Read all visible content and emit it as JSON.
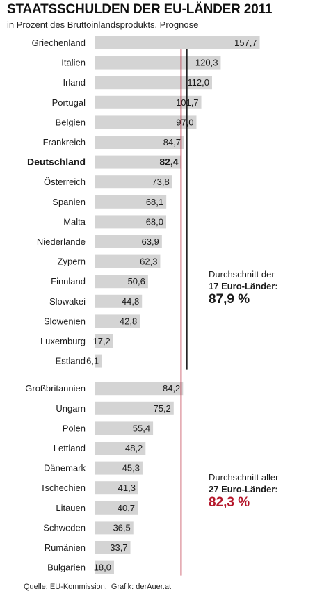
{
  "title": "STAATSSCHULDEN DER EU-LÄNDER 2011",
  "subtitle": "in Prozent des Bruttoinlandsprodukts, Prognose",
  "footer": {
    "source": "Quelle: EU-Kommission.",
    "credit": "Grafik: derAuer.at"
  },
  "averages": {
    "euro17": {
      "line1": "Durchschnitt der",
      "line2": "17 Euro-Länder:",
      "value": "87,9 %",
      "numeric": 87.9,
      "color": "#1a1a1a"
    },
    "eu27": {
      "line1": "Durchschnitt aller",
      "line2": "27 Euro-Länder:",
      "value": "82,3 %",
      "numeric": 82.3,
      "color": "#b5162a"
    }
  },
  "chart_data": {
    "type": "bar",
    "orientation": "horizontal",
    "title": "STAATSSCHULDEN DER EU-LÄNDER 2011",
    "subtitle": "in Prozent des Bruttoinlandsprodukts, Prognose",
    "xlim": [
      0,
      160
    ],
    "grid": false,
    "bar_color": "#d4d4d4",
    "highlight": "Deutschland",
    "groups": [
      {
        "name": "euro17",
        "items": [
          {
            "category": "Griechenland",
            "value": 157.7,
            "label": "157,7"
          },
          {
            "category": "Italien",
            "value": 120.3,
            "label": "120,3"
          },
          {
            "category": "Irland",
            "value": 112.0,
            "label": "112,0"
          },
          {
            "category": "Portugal",
            "value": 101.7,
            "label": "101,7"
          },
          {
            "category": "Belgien",
            "value": 97.0,
            "label": "97,0"
          },
          {
            "category": "Frankreich",
            "value": 84.7,
            "label": "84,7"
          },
          {
            "category": "Deutschland",
            "value": 82.4,
            "label": "82,4"
          },
          {
            "category": "Österreich",
            "value": 73.8,
            "label": "73,8"
          },
          {
            "category": "Spanien",
            "value": 68.1,
            "label": "68,1"
          },
          {
            "category": "Malta",
            "value": 68.0,
            "label": "68,0"
          },
          {
            "category": "Niederlande",
            "value": 63.9,
            "label": "63,9"
          },
          {
            "category": "Zypern",
            "value": 62.3,
            "label": "62,3"
          },
          {
            "category": "Finnland",
            "value": 50.6,
            "label": "50,6"
          },
          {
            "category": "Slowakei",
            "value": 44.8,
            "label": "44,8"
          },
          {
            "category": "Slowenien",
            "value": 42.8,
            "label": "42,8"
          },
          {
            "category": "Luxemburg",
            "value": 17.2,
            "label": "17,2"
          },
          {
            "category": "Estland",
            "value": 6.1,
            "label": "6,1"
          }
        ]
      },
      {
        "name": "non-euro",
        "items": [
          {
            "category": "Großbritannien",
            "value": 84.2,
            "label": "84,2"
          },
          {
            "category": "Ungarn",
            "value": 75.2,
            "label": "75,2"
          },
          {
            "category": "Polen",
            "value": 55.4,
            "label": "55,4"
          },
          {
            "category": "Lettland",
            "value": 48.2,
            "label": "48,2"
          },
          {
            "category": "Dänemark",
            "value": 45.3,
            "label": "45,3"
          },
          {
            "category": "Tschechien",
            "value": 41.3,
            "label": "41,3"
          },
          {
            "category": "Litauen",
            "value": 40.7,
            "label": "40,7"
          },
          {
            "category": "Schweden",
            "value": 36.5,
            "label": "36,5"
          },
          {
            "category": "Rumänien",
            "value": 33.7,
            "label": "33,7"
          },
          {
            "category": "Bulgarien",
            "value": 18.0,
            "label": "18,0"
          }
        ]
      }
    ]
  }
}
